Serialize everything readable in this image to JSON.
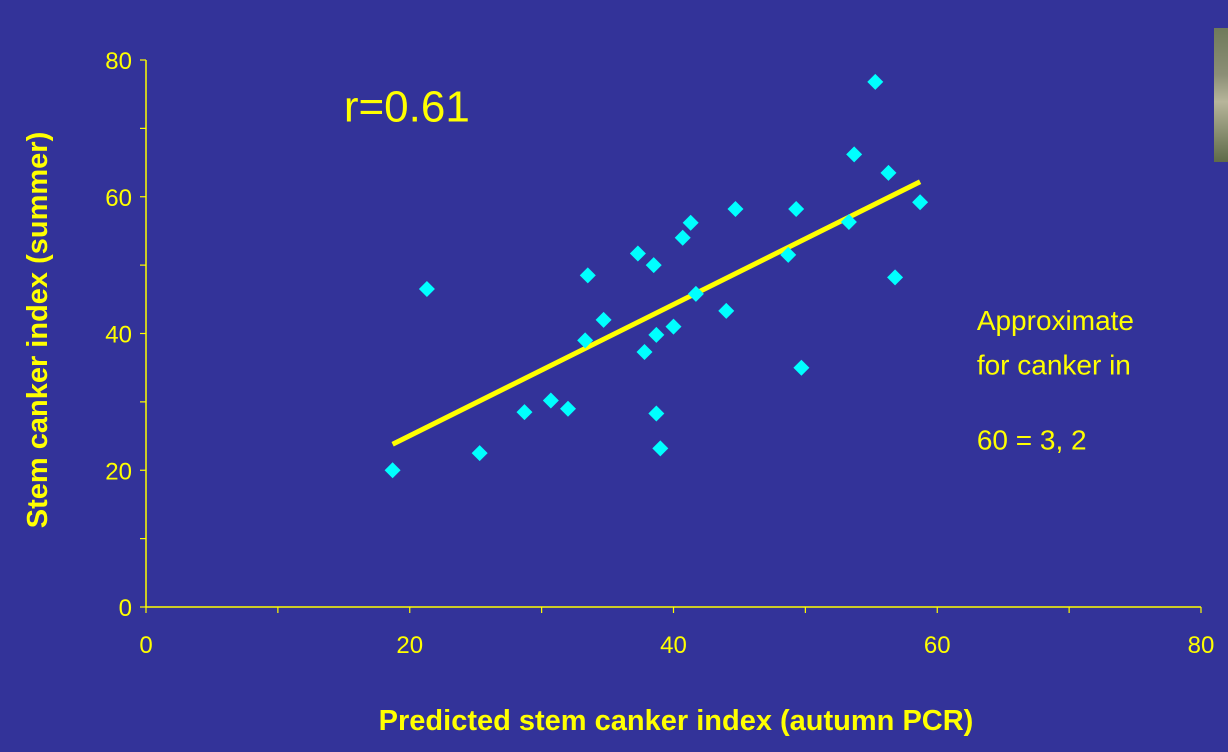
{
  "colors": {
    "background": "#333399",
    "text": "#ffff00",
    "points": "#00ffff",
    "trendline": "#ffff00",
    "axis": "#ffff00"
  },
  "chart_data": {
    "type": "scatter",
    "title": "",
    "xlabel": "Predicted  stem canker index (autumn PCR)",
    "ylabel": "Stem canker index (summer)",
    "xlim": [
      0,
      80
    ],
    "ylim": [
      0,
      80
    ],
    "xticks": [
      0,
      20,
      40,
      60,
      80
    ],
    "yticks": [
      0,
      20,
      40,
      60,
      80
    ],
    "grid": false,
    "series": [
      {
        "marker": "diamond",
        "points": [
          {
            "x": 18.7,
            "y": 20
          },
          {
            "x": 21.3,
            "y": 46.5
          },
          {
            "x": 25.3,
            "y": 22.5
          },
          {
            "x": 28.7,
            "y": 28.5
          },
          {
            "x": 30.7,
            "y": 30.2
          },
          {
            "x": 32,
            "y": 29
          },
          {
            "x": 33.3,
            "y": 39
          },
          {
            "x": 33.5,
            "y": 48.5
          },
          {
            "x": 34.7,
            "y": 42
          },
          {
            "x": 37.3,
            "y": 51.7
          },
          {
            "x": 37.8,
            "y": 37.3
          },
          {
            "x": 38.5,
            "y": 50
          },
          {
            "x": 38.7,
            "y": 28.3
          },
          {
            "x": 38.7,
            "y": 39.8
          },
          {
            "x": 39,
            "y": 23.2
          },
          {
            "x": 40,
            "y": 41
          },
          {
            "x": 40.7,
            "y": 54
          },
          {
            "x": 41.3,
            "y": 56.2
          },
          {
            "x": 41.7,
            "y": 45.8
          },
          {
            "x": 44,
            "y": 43.3
          },
          {
            "x": 44.7,
            "y": 58.2
          },
          {
            "x": 48.7,
            "y": 51.5
          },
          {
            "x": 49.3,
            "y": 58.2
          },
          {
            "x": 49.7,
            "y": 35
          },
          {
            "x": 53.3,
            "y": 56.3
          },
          {
            "x": 53.7,
            "y": 66.2
          },
          {
            "x": 55.3,
            "y": 76.8
          },
          {
            "x": 56.3,
            "y": 63.5
          },
          {
            "x": 56.8,
            "y": 48.2
          },
          {
            "x": 58.7,
            "y": 59.2
          }
        ]
      }
    ],
    "trendline": {
      "x": [
        18.7,
        58.7
      ],
      "y": [
        23.8,
        62.2
      ]
    },
    "annotations": [
      {
        "text": "r=0.61",
        "x": 15,
        "y": 71
      },
      {
        "text": "Approximate",
        "x": 63,
        "y": 40.5
      },
      {
        "text": "for canker in",
        "x": 63,
        "y": 34
      },
      {
        "text": "60 = 3,      2",
        "x": 63,
        "y": 23
      }
    ]
  }
}
